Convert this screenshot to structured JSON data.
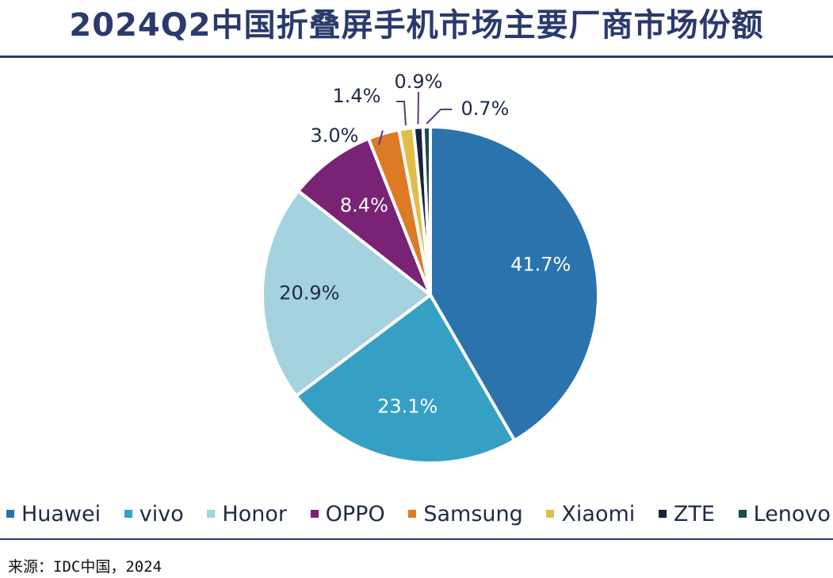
{
  "title": "2024Q2中国折叠屏手机市场主要厂商市场份额",
  "source": "来源：IDC中国，2024",
  "colors": {
    "rule": "#2a3a6e",
    "title": "#2a3a6e"
  },
  "chart_data": {
    "type": "pie",
    "title": "2024Q2中国折叠屏手机市场主要厂商市场份额",
    "legend_position": "bottom",
    "start_angle": "12 o'clock, clockwise",
    "slices": [
      {
        "name": "Huawei",
        "value": 41.7,
        "label": "41.7%",
        "color": "#2b73ad",
        "label_color": "#ffffff"
      },
      {
        "name": "vivo",
        "value": 23.1,
        "label": "23.1%",
        "color": "#36a0c4",
        "label_color": "#ffffff"
      },
      {
        "name": "Honor",
        "value": 20.9,
        "label": "20.9%",
        "color": "#a4d2df",
        "label_color": "#1f2a44"
      },
      {
        "name": "OPPO",
        "value": 8.4,
        "label": "8.4%",
        "color": "#7a2375",
        "label_color": "#ffffff"
      },
      {
        "name": "Samsung",
        "value": 3.0,
        "label": "3.0%",
        "color": "#dd7a26",
        "label_color": "#1f2a44"
      },
      {
        "name": "Xiaomi",
        "value": 1.4,
        "label": "1.4%",
        "color": "#e3bd4a",
        "label_color": "#1f2a44"
      },
      {
        "name": "ZTE",
        "value": 0.9,
        "label": "0.9%",
        "color": "#16243f",
        "label_color": "#1f2a44"
      },
      {
        "name": "Lenovo",
        "value": 0.7,
        "label": "0.7%",
        "color": "#1f4a52",
        "label_color": "#1f2a44"
      }
    ]
  }
}
